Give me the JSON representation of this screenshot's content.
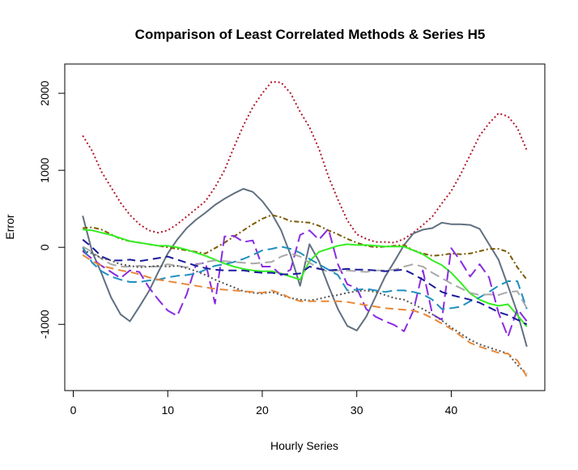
{
  "chart_data": {
    "type": "line",
    "title": "Comparison of Least Correlated Methods & Series H5",
    "xlabel": "Hourly Series",
    "ylabel": "Error",
    "xlim": [
      -0.9,
      49.9
    ],
    "ylim": [
      -1860,
      2380
    ],
    "x_ticks": [
      0,
      10,
      20,
      30,
      40
    ],
    "x_tick_labels": [
      "0",
      "10",
      "20",
      "30",
      "40"
    ],
    "y_ticks": [
      -1000,
      0,
      1000,
      2000
    ],
    "y_tick_labels": [
      "-1000",
      "0",
      "1000",
      "2000"
    ],
    "grid": false,
    "legend": "none",
    "x": [
      1,
      2,
      3,
      4,
      5,
      6,
      7,
      8,
      9,
      10,
      11,
      12,
      13,
      14,
      15,
      16,
      17,
      18,
      19,
      20,
      21,
      22,
      23,
      24,
      25,
      26,
      27,
      28,
      29,
      30,
      31,
      32,
      33,
      34,
      35,
      36,
      37,
      38,
      39,
      40,
      41,
      42,
      43,
      44,
      45,
      46,
      47,
      48
    ],
    "series": [
      {
        "color": "#b2182b",
        "dash": "2,3",
        "values": [
          1450,
          1250,
          980,
          780,
          580,
          420,
          300,
          220,
          190,
          220,
          300,
          400,
          500,
          600,
          780,
          1000,
          1300,
          1580,
          1820,
          2000,
          2150,
          2140,
          2000,
          1760,
          1560,
          1280,
          920,
          620,
          350,
          170,
          110,
          70,
          70,
          60,
          110,
          190,
          290,
          400,
          570,
          730,
          950,
          1200,
          1450,
          1610,
          1740,
          1700,
          1550,
          1260
        ]
      },
      {
        "color": "#607080",
        "dash": "none",
        "values": [
          410,
          -60,
          -340,
          -650,
          -870,
          -960,
          -770,
          -570,
          -320,
          -80,
          100,
          250,
          360,
          450,
          550,
          630,
          700,
          760,
          720,
          600,
          440,
          220,
          -100,
          -500,
          40,
          -180,
          -500,
          -800,
          -1020,
          -1080,
          -900,
          -640,
          -380,
          -180,
          30,
          180,
          230,
          250,
          320,
          300,
          300,
          290,
          240,
          40,
          -160,
          -500,
          -850,
          -1290
        ]
      },
      {
        "color": "#7b5a00",
        "dash": "6,3,2,3",
        "values": [
          250,
          260,
          230,
          170,
          110,
          80,
          60,
          40,
          20,
          0,
          -20,
          -40,
          -60,
          -80,
          -10,
          60,
          140,
          220,
          300,
          370,
          420,
          390,
          340,
          330,
          320,
          280,
          220,
          170,
          110,
          60,
          20,
          0,
          10,
          20,
          30,
          -40,
          -80,
          -110,
          -100,
          -80,
          -90,
          -80,
          -50,
          -20,
          -20,
          -60,
          -260,
          -420
        ]
      },
      {
        "color": "#33ee22",
        "dash": "none",
        "values": [
          230,
          220,
          190,
          160,
          120,
          80,
          60,
          40,
          20,
          20,
          0,
          -30,
          -70,
          -110,
          -160,
          -210,
          -250,
          -280,
          -300,
          -310,
          -310,
          -340,
          -380,
          -420,
          -180,
          -60,
          -20,
          20,
          40,
          30,
          30,
          20,
          10,
          10,
          10,
          -40,
          -90,
          -170,
          -230,
          -330,
          -460,
          -600,
          -680,
          -730,
          -760,
          -740,
          -880,
          -1030
        ]
      },
      {
        "color": "#8a2be2",
        "dash": "14,6",
        "values": [
          -50,
          -150,
          -240,
          -320,
          -400,
          -300,
          -320,
          -520,
          -680,
          -820,
          -890,
          -610,
          -220,
          -200,
          -730,
          140,
          150,
          70,
          90,
          -250,
          -250,
          -360,
          -290,
          160,
          220,
          100,
          240,
          -220,
          -480,
          -530,
          -800,
          -900,
          -960,
          -1010,
          -1090,
          -820,
          -300,
          -870,
          -940,
          -10,
          -180,
          -380,
          -220,
          -390,
          -850,
          -1160,
          -800,
          -960
        ]
      },
      {
        "color": "#1f8fbf",
        "dash": "12,6",
        "values": [
          0,
          -200,
          -310,
          -380,
          -420,
          -450,
          -450,
          -430,
          -420,
          -390,
          -370,
          -360,
          -340,
          -290,
          -240,
          -220,
          -190,
          -150,
          -100,
          -40,
          -20,
          10,
          -20,
          -70,
          -150,
          -220,
          -290,
          -360,
          -560,
          -550,
          -540,
          -560,
          -580,
          -560,
          -560,
          -580,
          -610,
          -680,
          -800,
          -790,
          -770,
          -700,
          -650,
          -580,
          -500,
          -440,
          -440,
          -800
        ]
      },
      {
        "color": "#a9a9a9",
        "dash": "12,6",
        "values": [
          10,
          -60,
          -150,
          -220,
          -250,
          -250,
          -240,
          -250,
          -250,
          -220,
          -240,
          -260,
          -230,
          -190,
          -170,
          -180,
          -190,
          -200,
          -210,
          -200,
          -190,
          -120,
          -80,
          -120,
          -200,
          -270,
          -320,
          -300,
          -300,
          -310,
          -320,
          -300,
          -300,
          -290,
          -250,
          -220,
          -250,
          -330,
          -400,
          -470,
          -530,
          -590,
          -620,
          -610,
          -620,
          -580,
          -570,
          -790
        ]
      },
      {
        "color": "#1a1a9c",
        "dash": "10,6",
        "values": [
          100,
          0,
          -120,
          -170,
          -170,
          -160,
          -180,
          -160,
          -140,
          -120,
          -160,
          -200,
          -240,
          -270,
          -290,
          -300,
          -300,
          -300,
          -320,
          -330,
          -330,
          -350,
          -350,
          -340,
          -250,
          -280,
          -300,
          -290,
          -280,
          -290,
          -290,
          -300,
          -310,
          -300,
          -290,
          -350,
          -420,
          -500,
          -580,
          -620,
          -650,
          -680,
          -720,
          -780,
          -840,
          -880,
          -940,
          -1000
        ]
      },
      {
        "color": "#555555",
        "dash": "2,3",
        "values": [
          -40,
          -80,
          -140,
          -170,
          -220,
          -240,
          -260,
          -250,
          -240,
          -250,
          -240,
          -270,
          -310,
          -360,
          -420,
          -470,
          -520,
          -570,
          -590,
          -600,
          -580,
          -620,
          -660,
          -680,
          -690,
          -670,
          -640,
          -620,
          -590,
          -570,
          -560,
          -580,
          -620,
          -660,
          -680,
          -740,
          -800,
          -870,
          -950,
          -1040,
          -1120,
          -1200,
          -1260,
          -1300,
          -1340,
          -1380,
          -1530,
          -1640
        ]
      },
      {
        "color": "#e8883a",
        "dash": "10,6",
        "values": [
          -100,
          -180,
          -240,
          -270,
          -300,
          -320,
          -350,
          -390,
          -420,
          -440,
          -460,
          -480,
          -500,
          -520,
          -540,
          -550,
          -560,
          -570,
          -580,
          -590,
          -560,
          -600,
          -660,
          -700,
          -700,
          -700,
          -700,
          -700,
          -710,
          -730,
          -750,
          -770,
          -790,
          -800,
          -810,
          -820,
          -860,
          -920,
          -990,
          -1060,
          -1150,
          -1240,
          -1290,
          -1330,
          -1370,
          -1380,
          -1470,
          -1680
        ]
      }
    ]
  }
}
